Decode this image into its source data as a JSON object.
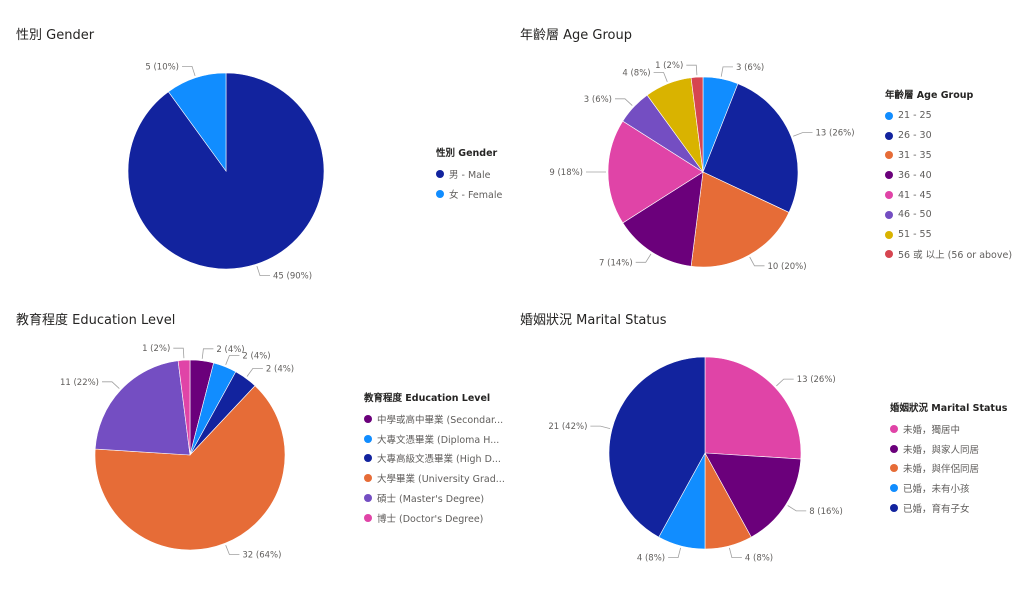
{
  "chart_data": [
    {
      "type": "pie",
      "title": "性別 Gender",
      "legend_title": "性別 Gender",
      "legend_position": "right",
      "categories": [
        "男 - Male",
        "女 - Female"
      ],
      "values": [
        45,
        5
      ],
      "data_labels": [
        "45 (90%)",
        "5 (10%)"
      ],
      "colors": [
        "#12239E",
        "#118DFF"
      ]
    },
    {
      "type": "pie",
      "title": "年齡層 Age Group",
      "legend_title": "年齡層 Age Group",
      "legend_position": "right",
      "categories": [
        "21 - 25",
        "26 - 30",
        "31 - 35",
        "36 - 40",
        "41 - 45",
        "46 - 50",
        "51 - 55",
        "56 或 以上 (56 or above)"
      ],
      "values": [
        3,
        13,
        10,
        7,
        9,
        3,
        4,
        1
      ],
      "data_labels": [
        "3 (6%)",
        "13 (26%)",
        "10 (20%)",
        "7 (14%)",
        "9 (18%)",
        "3 (6%)",
        "4 (8%)",
        "1 (2%)"
      ],
      "colors": [
        "#118DFF",
        "#12239E",
        "#E66C37",
        "#6B007B",
        "#E044A7",
        "#744EC2",
        "#D9B300",
        "#D64550"
      ]
    },
    {
      "type": "pie",
      "title": "教育程度 Education Level",
      "legend_title": "教育程度 Education Level",
      "legend_position": "right",
      "categories": [
        "中學或高中畢業 (Secondary School Graduate)",
        "大專文憑畢業 (Diploma Holder)",
        "大專高級文憑畢業 (Higher Diploma Holder)",
        "大學畢業 (University Graduate)",
        "碩士 (Master's Degree)",
        "博士 (Doctor's Degree)"
      ],
      "legend_labels": [
        "中學或高中畢業 (Secondar...",
        "大專文憑畢業 (Diploma H...",
        "大專高級文憑畢業 (High D...",
        "大學畢業 (University Grad...",
        "碩士 (Master's Degree)",
        "博士 (Doctor's Degree)"
      ],
      "values": [
        2,
        2,
        2,
        32,
        11,
        1
      ],
      "data_labels": [
        "2 (4%)",
        "2 (4%)",
        "2 (4%)",
        "32 (64%)",
        "11 (22%)",
        "1 (2%)"
      ],
      "colors": [
        "#6B007B",
        "#118DFF",
        "#12239E",
        "#E66C37",
        "#744EC2",
        "#E044A7"
      ]
    },
    {
      "type": "pie",
      "title": "婚姻狀況 Marital Status",
      "legend_title": "婚姻狀況 Marital Status",
      "legend_position": "right",
      "categories": [
        "未婚，獨居中",
        "未婚，與家人同居",
        "未婚，與伴侶同居",
        "已婚，未有小孩",
        "已婚，育有子女"
      ],
      "values": [
        13,
        8,
        4,
        4,
        21
      ],
      "data_labels": [
        "13 (26%)",
        "8 (16%)",
        "4 (8%)",
        "4 (8%)",
        "21 (42%)"
      ],
      "colors": [
        "#E044A7",
        "#6B007B",
        "#E66C37",
        "#118DFF",
        "#12239E"
      ]
    }
  ]
}
